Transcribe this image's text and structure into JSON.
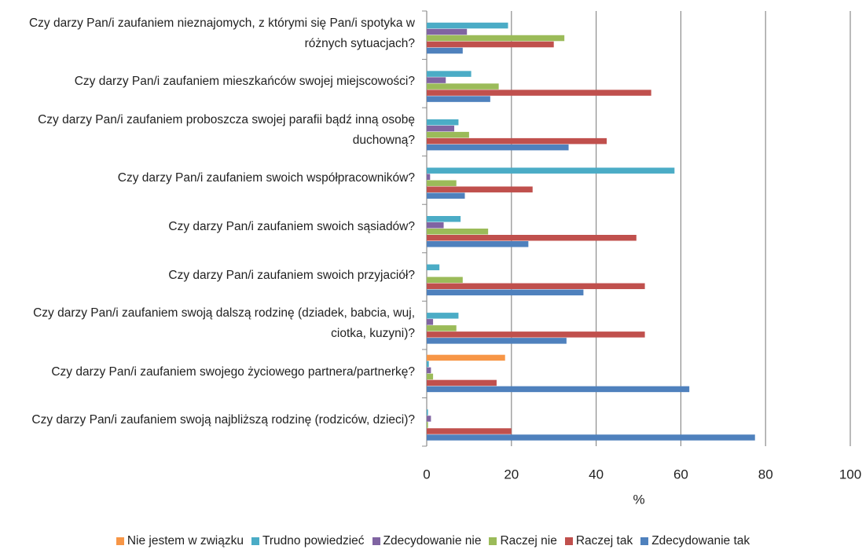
{
  "chart_data": {
    "type": "bar",
    "orientation": "horizontal",
    "categories": [
      "Czy darzy Pan/i zaufaniem nieznajomych, z którymi się Pan/i spotyka w różnych sytuacjach?",
      "Czy darzy Pan/i zaufaniem mieszkańców swojej miejscowości?",
      "Czy darzy Pan/i zaufaniem proboszcza swojej parafii bądź inną osobę duchowną?",
      "Czy darzy Pan/i zaufaniem swoich współpracowników?",
      "Czy darzy Pan/i zaufaniem swoich sąsiadów?",
      "Czy darzy Pan/i zaufaniem swoich przyjaciół?",
      "Czy darzy Pan/i zaufaniem swoją dalszą rodzinę (dziadek, babcia, wuj, ciotka, kuzyni)?",
      "Czy darzy Pan/i zaufaniem swojego życiowego partnera/partnerkę?",
      "Czy darzy Pan/i zaufaniem swoją najbliższą rodzinę (rodziców, dzieci)?"
    ],
    "series": [
      {
        "name": "Nie jestem w związku",
        "color": "#f79646",
        "values": [
          0,
          0,
          0,
          0,
          0,
          0,
          0,
          18.5,
          0
        ]
      },
      {
        "name": "Trudno powiedzieć",
        "color": "#4bacc6",
        "values": [
          19.2,
          10.5,
          7.5,
          58.5,
          8,
          3,
          7.5,
          0.5,
          0.3
        ]
      },
      {
        "name": "Zdecydowanie nie",
        "color": "#8064a2",
        "values": [
          9.5,
          4.5,
          6.5,
          0.8,
          4,
          0,
          1.5,
          1,
          1
        ]
      },
      {
        "name": "Raczej nie",
        "color": "#9bbb59",
        "values": [
          32.5,
          17,
          10,
          7,
          14.5,
          8.5,
          7,
          1.5,
          0.3
        ]
      },
      {
        "name": "Raczej tak",
        "color": "#c0504d",
        "values": [
          30,
          53,
          42.5,
          25,
          49.5,
          51.5,
          51.5,
          16.5,
          20
        ]
      },
      {
        "name": "Zdecydowanie tak",
        "color": "#4f81bd",
        "values": [
          8.5,
          15,
          33.5,
          9,
          24,
          37,
          33,
          62,
          77.5
        ]
      }
    ],
    "xlabel": "%",
    "xlim": [
      0,
      100
    ],
    "xticks": [
      0,
      20,
      40,
      60,
      80,
      100
    ],
    "grid": true,
    "legend": "bottom"
  }
}
